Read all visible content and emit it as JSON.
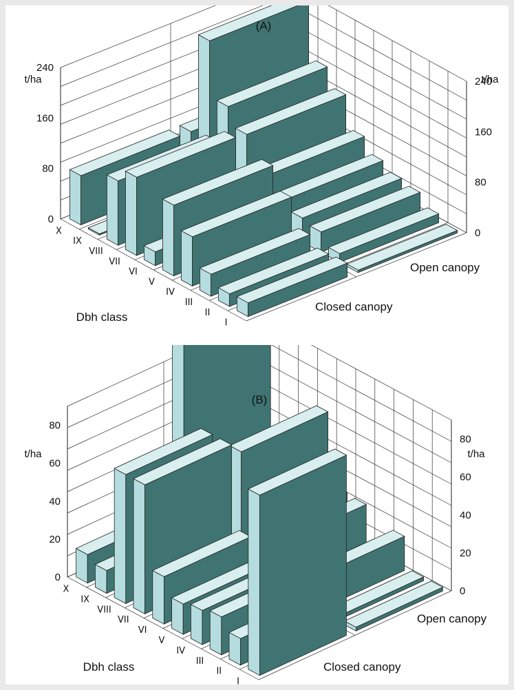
{
  "chart_data": [
    {
      "type": "bar",
      "title": "(A)",
      "zunit_left": "t/ha",
      "zunit_right": "t/ha",
      "zlim": [
        0,
        240
      ],
      "zticks": [
        "0",
        "80",
        "160",
        "240"
      ],
      "xlabel": "Dbh class",
      "categories": [
        "I",
        "II",
        "III",
        "IV",
        "V",
        "VI",
        "VII",
        "VIII",
        "IX",
        "X"
      ],
      "series": [
        {
          "name": "Closed canopy",
          "values": [
            22,
            20,
            35,
            78,
            112,
            22,
            124,
            102,
            2,
            78
          ]
        },
        {
          "name": "Open canopy",
          "values": [
            4,
            14,
            32,
            38,
            50,
            72,
            122,
            150,
            238,
            78
          ]
        }
      ],
      "grid": true,
      "legend": "none"
    },
    {
      "type": "bar",
      "title": "(B)",
      "zunit_left": "t/ha",
      "zunit_right": "t/ha",
      "zlim": [
        0,
        90
      ],
      "zticks": [
        "0",
        "20",
        "40",
        "60",
        "80"
      ],
      "xlabel": "Dbh class",
      "categories": [
        "I",
        "II",
        "III",
        "IV",
        "V",
        "VI",
        "VII",
        "VIII",
        "IX",
        "X"
      ],
      "series": [
        {
          "name": "Closed canopy",
          "values": [
            95,
            14,
            20,
            18,
            16,
            25,
            68,
            68,
            12,
            15
          ]
        },
        {
          "name": "Open canopy",
          "values": [
            2,
            2,
            18,
            8,
            24,
            25,
            62,
            32,
            2,
            110
          ]
        }
      ],
      "grid": true,
      "legend": "none"
    }
  ],
  "colors": {
    "bar_front": "#3f7472",
    "bar_side": "#b5dcde",
    "bar_top": "#d9eeee"
  }
}
